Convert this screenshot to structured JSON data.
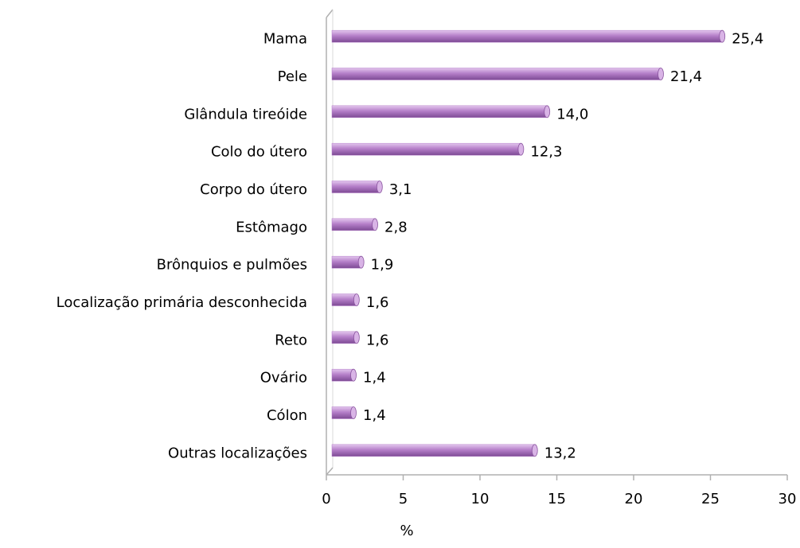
{
  "chart_data": {
    "type": "bar",
    "orientation": "horizontal",
    "categories": [
      "Mama",
      "Pele",
      "Glândula tireóide",
      "Colo do útero",
      "Corpo do útero",
      "Estômago",
      "Brônquios e pulmões",
      "Localização primária desconhecida",
      "Reto",
      "Ovário",
      "Cólon",
      "Outras localizações"
    ],
    "values": [
      25.4,
      21.4,
      14.0,
      12.3,
      3.1,
      2.8,
      1.9,
      1.6,
      1.6,
      1.4,
      1.4,
      13.2
    ],
    "value_labels": [
      "25,4",
      "21,4",
      "14,0",
      "12,3",
      "3,1",
      "2,8",
      "1,9",
      "1,6",
      "1,6",
      "1,4",
      "1,4",
      "13,2"
    ],
    "color": "#b57fc9",
    "xlabel": "%",
    "xlim": [
      0,
      30
    ],
    "xticks": [
      0,
      5,
      10,
      15,
      20,
      25,
      30
    ]
  }
}
